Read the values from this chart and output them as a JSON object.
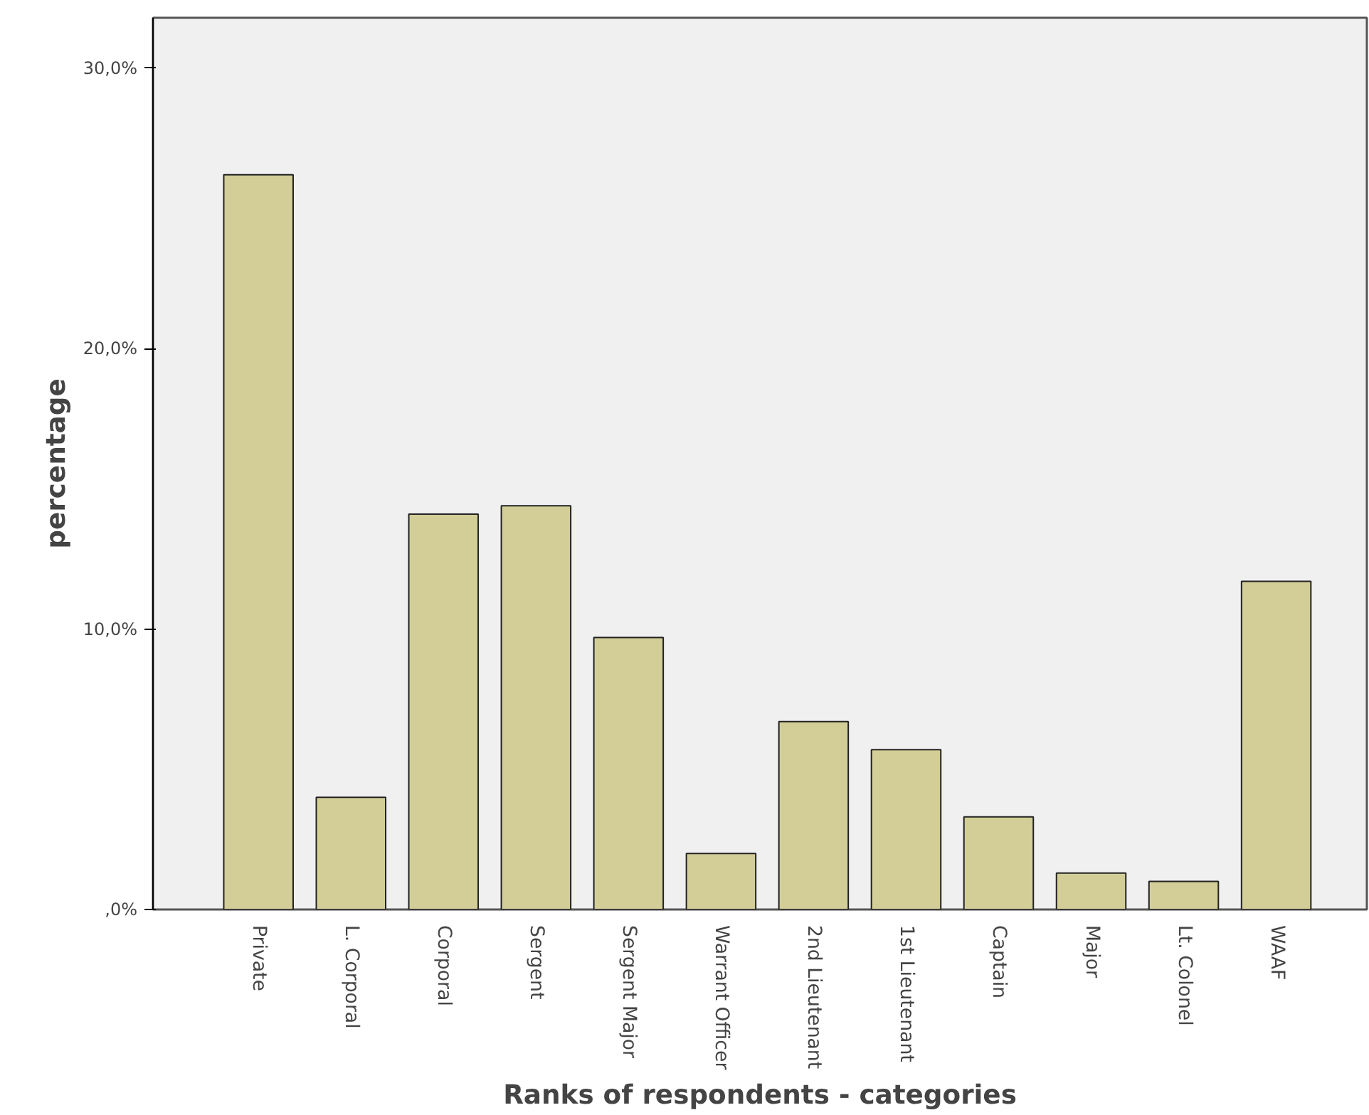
{
  "chart_data": {
    "type": "bar",
    "xlabel": "Ranks of respondents - categories",
    "ylabel": "percentage",
    "categories": [
      "Private",
      "L. Corporal",
      "Corporal",
      "Sergent",
      "Sergent Major",
      "Warrant Officer",
      "2nd Lieutenant",
      "1st Lieutenant",
      "Captain",
      "Major",
      "Lt. Colonel",
      "WAAF"
    ],
    "values": [
      26.2,
      4.0,
      14.1,
      14.4,
      9.7,
      2.0,
      6.7,
      5.7,
      3.3,
      1.3,
      1.0,
      11.7
    ],
    "color": "#d3ce97",
    "ylim": [
      0,
      31.8
    ],
    "yticks": [
      {
        "value": 0,
        "label": ",0%"
      },
      {
        "value": 10,
        "label": "10,0%"
      },
      {
        "value": 20,
        "label": "20,0%"
      },
      {
        "value": 30,
        "label": "30,0%"
      }
    ],
    "grid": false
  }
}
